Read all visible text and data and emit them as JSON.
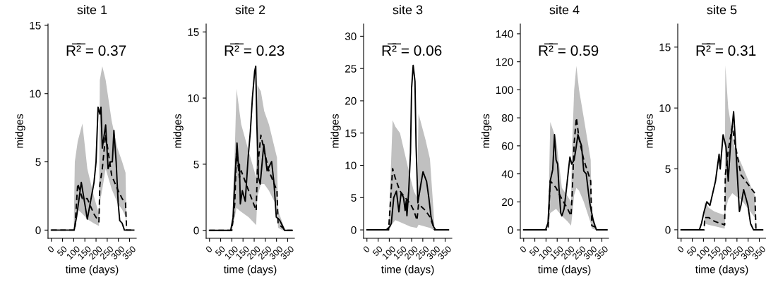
{
  "chart_data": [
    {
      "type": "line",
      "title": "site 1",
      "xlabel": "time (days)",
      "ylabel": "midges",
      "annotations": [
        "R̅²̅ = 0.37"
      ],
      "xlim": [
        -15,
        380
      ],
      "xticks": [
        0,
        50,
        100,
        150,
        200,
        250,
        300,
        350
      ],
      "ylim": [
        -0.6,
        15.1
      ],
      "yticks": [
        0,
        5,
        10,
        15
      ],
      "series": [
        {
          "color": "#000000",
          "line_style": "solid",
          "x": [
            0,
            102,
            113,
            134,
            161,
            191,
            200,
            209,
            217,
            222,
            228,
            243,
            254,
            264,
            273,
            280,
            290,
            299,
            306,
            317,
            327,
            369
          ],
          "values": [
            0,
            0,
            1,
            3.5,
            0.8,
            3.5,
            5,
            9,
            8.5,
            9,
            6,
            7.7,
            4.5,
            5,
            5,
            7.3,
            5,
            2,
            0.7,
            0.5,
            0,
            0
          ]
        },
        {
          "color": "#000000",
          "line_style": "dashed",
          "x": [
            0,
            100,
            105,
            118,
            139,
            161,
            190,
            213,
            217,
            228,
            243,
            270,
            296,
            317,
            332,
            337,
            370
          ],
          "values": [
            0,
            0,
            0,
            3.4,
            2.3,
            2.3,
            1.2,
            0.6,
            3.3,
            4.5,
            7,
            4,
            3,
            2.3,
            2,
            0,
            0
          ],
          "lower": [
            0,
            0,
            0,
            1.5,
            1.2,
            0.8,
            0.5,
            0.3,
            2,
            3,
            4.5,
            3,
            2,
            1.5,
            1,
            0,
            0
          ],
          "upper": [
            0,
            0,
            5,
            6.5,
            7.8,
            4.5,
            2.5,
            1.2,
            11,
            12,
            11,
            8,
            6,
            5,
            4.2,
            0,
            0
          ]
        }
      ]
    },
    {
      "type": "line",
      "title": "site 2",
      "xlabel": "time (days)",
      "ylabel": "midges",
      "annotations": [
        "R̅²̅ = 0.23"
      ],
      "xlim": [
        -15,
        380
      ],
      "xticks": [
        0,
        50,
        100,
        150,
        200,
        250,
        300,
        350
      ],
      "ylim": [
        -0.6,
        15.6
      ],
      "yticks": [
        0,
        5,
        10,
        15
      ],
      "series": [
        {
          "color": "#000000",
          "line_style": "solid",
          "x": [
            0,
            95,
            106,
            111,
            123,
            131,
            134,
            138,
            147,
            160,
            173,
            183,
            192,
            202,
            207,
            212,
            219,
            227,
            243,
            258,
            278,
            289,
            299,
            313,
            328,
            336,
            370
          ],
          "values": [
            0,
            0,
            1,
            3,
            6.6,
            4.5,
            5,
            2,
            3,
            2.2,
            5.5,
            7.5,
            10,
            12,
            12.4,
            8,
            4,
            3.5,
            6.5,
            4.5,
            5.2,
            3.5,
            1,
            0.8,
            0.3,
            0,
            0
          ]
        },
        {
          "color": "#000000",
          "line_style": "dashed",
          "x": [
            0,
            100,
            113,
            121,
            134,
            142,
            175,
            209,
            214,
            230,
            245,
            266,
            302,
            307,
            328,
            338,
            370
          ],
          "values": [
            0,
            0,
            2,
            6,
            4,
            4.5,
            3,
            1.5,
            4.5,
            7.2,
            6,
            4.5,
            3,
            0.5,
            0.2,
            0,
            0
          ],
          "lower": [
            0,
            0,
            1,
            1.7,
            1.5,
            1.4,
            1,
            0.4,
            2.5,
            3.5,
            3.5,
            3,
            1.8,
            0.2,
            0,
            0,
            0
          ],
          "upper": [
            0,
            0,
            6,
            10.7,
            9,
            8,
            6,
            4,
            11,
            10.5,
            9,
            8,
            5.5,
            1.5,
            0.5,
            0,
            0
          ]
        }
      ]
    },
    {
      "type": "line",
      "title": "site 3",
      "xlabel": "time (days)",
      "ylabel": "midges",
      "annotations": [
        "R̅²̅ = 0.06"
      ],
      "xlim": [
        -15,
        380
      ],
      "xticks": [
        0,
        50,
        100,
        150,
        200,
        250,
        300,
        350
      ],
      "ylim": [
        -1.3,
        31.9
      ],
      "yticks": [
        0,
        5,
        10,
        15,
        20,
        25,
        30
      ],
      "series": [
        {
          "color": "#000000",
          "line_style": "solid",
          "x": [
            0,
            86,
            102,
            109,
            120,
            132,
            143,
            153,
            164,
            171,
            176,
            179,
            187,
            195,
            200,
            207,
            215,
            220,
            228,
            241,
            251,
            267,
            277,
            287,
            298,
            308,
            365
          ],
          "values": [
            0,
            0,
            0.5,
            1,
            5,
            6,
            2.8,
            5.7,
            5,
            3,
            4.5,
            2.2,
            6,
            12,
            22,
            25.5,
            23,
            13,
            4.2,
            7,
            9,
            7.5,
            5,
            2,
            0.5,
            0,
            0
          ]
        },
        {
          "color": "#000000",
          "line_style": "dashed",
          "x": [
            0,
            97,
            115,
            127,
            148,
            195,
            210,
            224,
            231,
            262,
            282,
            298,
            303,
            365
          ],
          "values": [
            0,
            0,
            9.5,
            8,
            6,
            4,
            3,
            1.5,
            4,
            3,
            2,
            0.5,
            0,
            0
          ],
          "lower": [
            0,
            0,
            1,
            1.5,
            1.2,
            0.5,
            0.4,
            0.3,
            0.8,
            0.5,
            0.3,
            0,
            0,
            0
          ],
          "upper": [
            0,
            0,
            17,
            16,
            15,
            8,
            6,
            5,
            18,
            14,
            11,
            3,
            0,
            0
          ]
        }
      ]
    },
    {
      "type": "line",
      "title": "site 4",
      "xlabel": "time (days)",
      "ylabel": "midges",
      "annotations": [
        "R̅²̅ = 0.59"
      ],
      "xlim": [
        -15,
        380
      ],
      "xticks": [
        0,
        50,
        100,
        150,
        200,
        250,
        300,
        350
      ],
      "ylim": [
        -6,
        147
      ],
      "yticks": [
        0,
        20,
        40,
        60,
        80,
        100,
        120,
        140
      ],
      "series": [
        {
          "color": "#000000",
          "line_style": "solid",
          "x": [
            0,
            98,
            109,
            119,
            130,
            138,
            145,
            152,
            158,
            166,
            171,
            181,
            192,
            200,
            207,
            215,
            226,
            233,
            243,
            259,
            269,
            280,
            295,
            311,
            319,
            326,
            373
          ],
          "values": [
            0,
            0,
            5,
            35,
            43,
            68,
            50,
            47,
            30,
            12,
            10,
            15,
            30,
            42,
            52,
            47,
            50,
            57,
            68,
            60,
            42,
            40,
            20,
            7,
            3,
            0,
            0
          ]
        },
        {
          "color": "#000000",
          "line_style": "dashed",
          "x": [
            0,
            109,
            119,
            145,
            171,
            197,
            212,
            217,
            226,
            236,
            248,
            269,
            300,
            305,
            321,
            326,
            373
          ],
          "values": [
            0,
            0,
            35,
            30,
            22,
            15,
            10,
            25,
            62,
            80,
            65,
            50,
            35,
            3,
            2,
            0,
            0
          ],
          "lower": [
            0,
            0,
            12,
            15,
            10,
            6,
            3,
            10,
            25,
            30,
            28,
            20,
            5,
            1,
            0,
            0,
            0
          ],
          "upper": [
            0,
            0,
            77,
            65,
            30,
            24,
            20,
            60,
            100,
            117,
            100,
            80,
            50,
            8,
            4,
            0,
            0
          ]
        }
      ]
    },
    {
      "type": "line",
      "title": "site 5",
      "xlabel": "time (days)",
      "ylabel": "midges",
      "annotations": [
        "R̅²̅ = 0.31"
      ],
      "xlim": [
        -15,
        380
      ],
      "xticks": [
        0,
        50,
        100,
        150,
        200,
        250,
        300,
        350
      ],
      "ylim": [
        -0.7,
        16.9
      ],
      "yticks": [
        0,
        5,
        10,
        15
      ],
      "series": [
        {
          "color": "#000000",
          "line_style": "solid",
          "x": [
            0,
            82,
            91,
            103,
            115,
            129,
            154,
            170,
            175,
            188,
            201,
            211,
            221,
            235,
            247,
            261,
            268,
            280,
            299,
            311,
            324,
            365
          ],
          "values": [
            0,
            0,
            0.5,
            1.5,
            2.3,
            2,
            4,
            6.2,
            5,
            7.8,
            6.8,
            4,
            7,
            9.7,
            6,
            1.5,
            2,
            3.3,
            2,
            0.5,
            0,
            0
          ]
        },
        {
          "color": "#000000",
          "line_style": "dashed",
          "x": [
            0,
            103,
            106,
            124,
            149,
            195,
            198,
            211,
            229,
            242,
            268,
            330,
            335,
            365
          ],
          "values": [
            0,
            0,
            1,
            1,
            0.7,
            0.4,
            4.5,
            6.5,
            8.5,
            7,
            4.5,
            3,
            0,
            0
          ],
          "lower": [
            0,
            0,
            0.5,
            0.4,
            0.3,
            0.1,
            1.5,
            2.5,
            3,
            2.8,
            2.5,
            1,
            0,
            0
          ],
          "upper": [
            0,
            0,
            2.3,
            1.8,
            1.5,
            1.2,
            13.5,
            10,
            8,
            6.5,
            5.5,
            2.8,
            0,
            0
          ]
        }
      ]
    }
  ]
}
